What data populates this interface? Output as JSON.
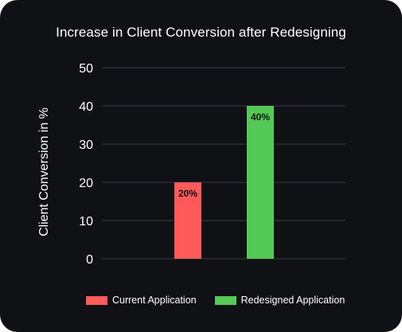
{
  "chart_data": {
    "type": "bar",
    "title": "Increase in Client Conversion after Redesigning",
    "xlabel": "",
    "ylabel": "Client Conversion in %",
    "ylim": [
      0,
      50
    ],
    "yticks": [
      0,
      10,
      20,
      30,
      40,
      50
    ],
    "grid": true,
    "legend_position": "bottom",
    "series": [
      {
        "name": "Current Application",
        "value": 20,
        "label": "20%",
        "color": "#ff5a5a"
      },
      {
        "name": "Redesigned Application",
        "value": 40,
        "label": "40%",
        "color": "#55c955"
      }
    ],
    "background_color": "#0f1115",
    "grid_color": "#3a3d42",
    "text_color": "#ffffff",
    "data_label_color": "#111111"
  }
}
